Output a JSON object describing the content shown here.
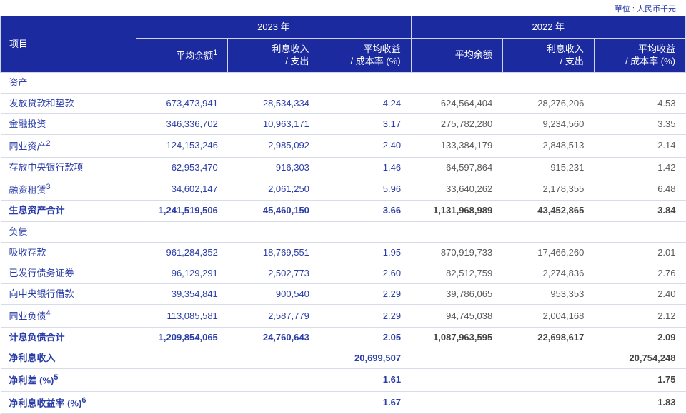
{
  "meta": {
    "unit_label": "單位 : 人民币千元",
    "header_bg": "#1b2a9f",
    "header_fg": "#ffffff",
    "border_color": "#d8dce8",
    "text_primary": "#2b3ea8",
    "text_secondary": "#5a5a5a",
    "background": "#ffffff",
    "font_size_body": 13,
    "font_size_unit": 11
  },
  "headers": {
    "item": "项目",
    "y2023": "2023 年",
    "y2022": "2022 年",
    "avg_balance": "平均余额",
    "avg_balance_sup": "1",
    "interest": "利息收入\n/ 支出",
    "rate": "平均收益\n/ 成本率 (%)",
    "avg_balance_2022": "平均余额"
  },
  "sections": {
    "assets": "资产",
    "liab": "负债"
  },
  "rows": {
    "loans": {
      "label": "发放贷款和垫款",
      "a1": "673,473,941",
      "a2": "28,534,334",
      "a3": "4.24",
      "b1": "624,564,404",
      "b2": "28,276,206",
      "b3": "4.53"
    },
    "invest": {
      "label": "金融投资",
      "a1": "346,336,702",
      "a2": "10,963,171",
      "a3": "3.17",
      "b1": "275,782,280",
      "b2": "9,234,560",
      "b3": "3.35"
    },
    "interbk": {
      "label": "同业资产",
      "sup": "2",
      "a1": "124,153,246",
      "a2": "2,985,092",
      "a3": "2.40",
      "b1": "133,384,179",
      "b2": "2,848,513",
      "b3": "2.14"
    },
    "central": {
      "label": "存放中央银行款项",
      "a1": "62,953,470",
      "a2": "916,303",
      "a3": "1.46",
      "b1": "64,597,864",
      "b2": "915,231",
      "b3": "1.42"
    },
    "lease": {
      "label": "融资租赁",
      "sup": "3",
      "a1": "34,602,147",
      "a2": "2,061,250",
      "a3": "5.96",
      "b1": "33,640,262",
      "b2": "2,178,355",
      "b3": "6.48"
    },
    "assets_total": {
      "label": "生息资产合计",
      "a1": "1,241,519,506",
      "a2": "45,460,150",
      "a3": "3.66",
      "b1": "1,131,968,989",
      "b2": "43,452,865",
      "b3": "3.84"
    },
    "deposits": {
      "label": "吸收存款",
      "a1": "961,284,352",
      "a2": "18,769,551",
      "a3": "1.95",
      "b1": "870,919,733",
      "b2": "17,466,260",
      "b3": "2.01"
    },
    "bonds": {
      "label": "已发行债务证券",
      "a1": "96,129,291",
      "a2": "2,502,773",
      "a3": "2.60",
      "b1": "82,512,759",
      "b2": "2,274,836",
      "b3": "2.76"
    },
    "cb_borrow": {
      "label": "向中央银行借款",
      "a1": "39,354,841",
      "a2": "900,540",
      "a3": "2.29",
      "b1": "39,786,065",
      "b2": "953,353",
      "b3": "2.40"
    },
    "ib_liab": {
      "label": "同业负债",
      "sup": "4",
      "a1": "113,085,581",
      "a2": "2,587,779",
      "a3": "2.29",
      "b1": "94,745,038",
      "b2": "2,004,168",
      "b3": "2.12"
    },
    "liab_total": {
      "label": "计息负债合计",
      "a1": "1,209,854,065",
      "a2": "24,760,643",
      "a3": "2.05",
      "b1": "1,087,963,595",
      "b2": "22,698,617",
      "b3": "2.09"
    },
    "nii": {
      "label": "净利息收入",
      "v23": "20,699,507",
      "v22": "20,754,248"
    },
    "spread": {
      "label": "净利差 (%)",
      "sup": "5",
      "v23": "1.61",
      "v22": "1.75"
    },
    "nim": {
      "label": "净利息收益率 (%)",
      "sup": "6",
      "v23": "1.67",
      "v22": "1.83"
    }
  }
}
